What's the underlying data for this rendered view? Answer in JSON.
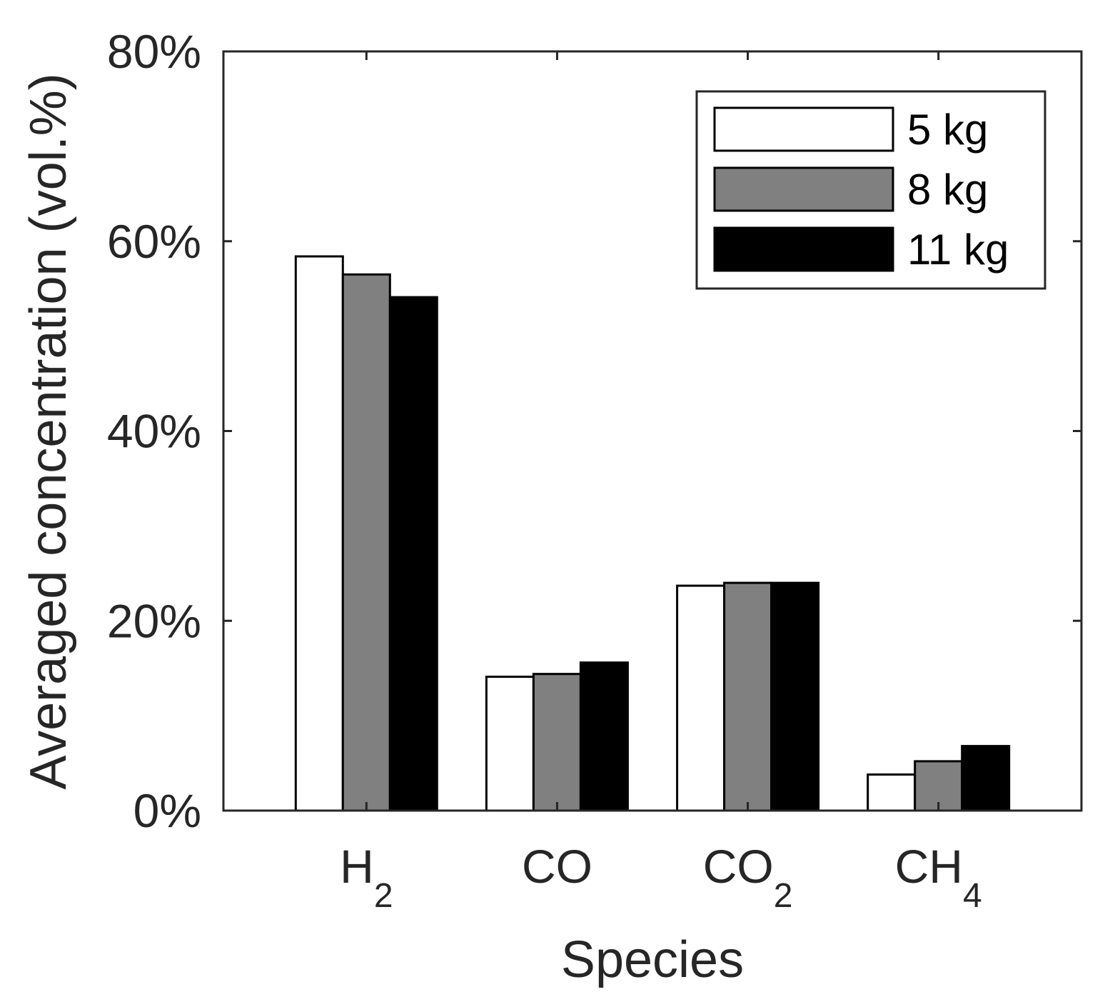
{
  "chart_data": {
    "type": "bar",
    "title": "",
    "xlabel": "Species",
    "ylabel": "Averaged concentration (vol.%)",
    "categories": [
      {
        "main": "H",
        "sub": "2"
      },
      {
        "main": "CO",
        "sub": ""
      },
      {
        "main": "CO",
        "sub": "2"
      },
      {
        "main": "CH",
        "sub": "4"
      }
    ],
    "series": [
      {
        "name": "5 kg",
        "color": "#ffffff",
        "values": [
          58.4,
          14.1,
          23.7,
          3.8
        ]
      },
      {
        "name": "8 kg",
        "color": "#808080",
        "values": [
          56.5,
          14.4,
          24.0,
          5.2
        ]
      },
      {
        "name": "11 kg",
        "color": "#000000",
        "values": [
          54.1,
          15.6,
          24.0,
          6.8
        ]
      }
    ],
    "ylim": [
      0,
      80
    ],
    "yticks": [
      0,
      20,
      40,
      60,
      80
    ],
    "ytick_labels": [
      "0%",
      "20%",
      "40%",
      "60%",
      "80%"
    ],
    "legend_position": "top-right",
    "grid": false
  }
}
